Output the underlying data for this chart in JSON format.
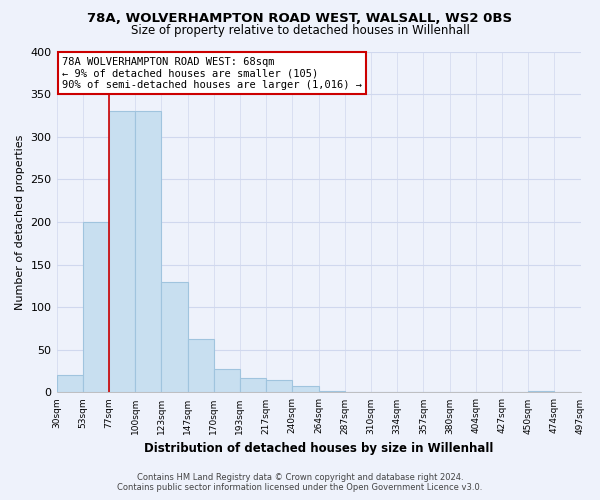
{
  "title1": "78A, WOLVERHAMPTON ROAD WEST, WALSALL, WS2 0BS",
  "title2": "Size of property relative to detached houses in Willenhall",
  "xlabel": "Distribution of detached houses by size in Willenhall",
  "ylabel": "Number of detached properties",
  "bar_values": [
    20,
    200,
    330,
    330,
    130,
    63,
    27,
    17,
    15,
    8,
    2,
    0,
    0,
    0,
    0,
    0,
    0,
    0,
    2,
    0
  ],
  "bar_labels": [
    "30sqm",
    "53sqm",
    "77sqm",
    "100sqm",
    "123sqm",
    "147sqm",
    "170sqm",
    "193sqm",
    "217sqm",
    "240sqm",
    "264sqm",
    "287sqm",
    "310sqm",
    "334sqm",
    "357sqm",
    "380sqm",
    "404sqm",
    "427sqm",
    "450sqm",
    "474sqm",
    "497sqm"
  ],
  "bar_color": "#c8dff0",
  "bar_edge_color": "#a0c4de",
  "vline_x": 2,
  "vline_color": "#cc0000",
  "annotation_title": "78A WOLVERHAMPTON ROAD WEST: 68sqm",
  "annotation_line1": "← 9% of detached houses are smaller (105)",
  "annotation_line2": "90% of semi-detached houses are larger (1,016) →",
  "annotation_box_color": "#ffffff",
  "annotation_box_edge": "#cc0000",
  "ylim": [
    0,
    400
  ],
  "yticks": [
    0,
    50,
    100,
    150,
    200,
    250,
    300,
    350,
    400
  ],
  "footer1": "Contains HM Land Registry data © Crown copyright and database right 2024.",
  "footer2": "Contains public sector information licensed under the Open Government Licence v3.0.",
  "bg_color": "#eef2fb",
  "grid_color": "#d0d8ee",
  "title1_fontsize": 9.5,
  "title2_fontsize": 8.5
}
